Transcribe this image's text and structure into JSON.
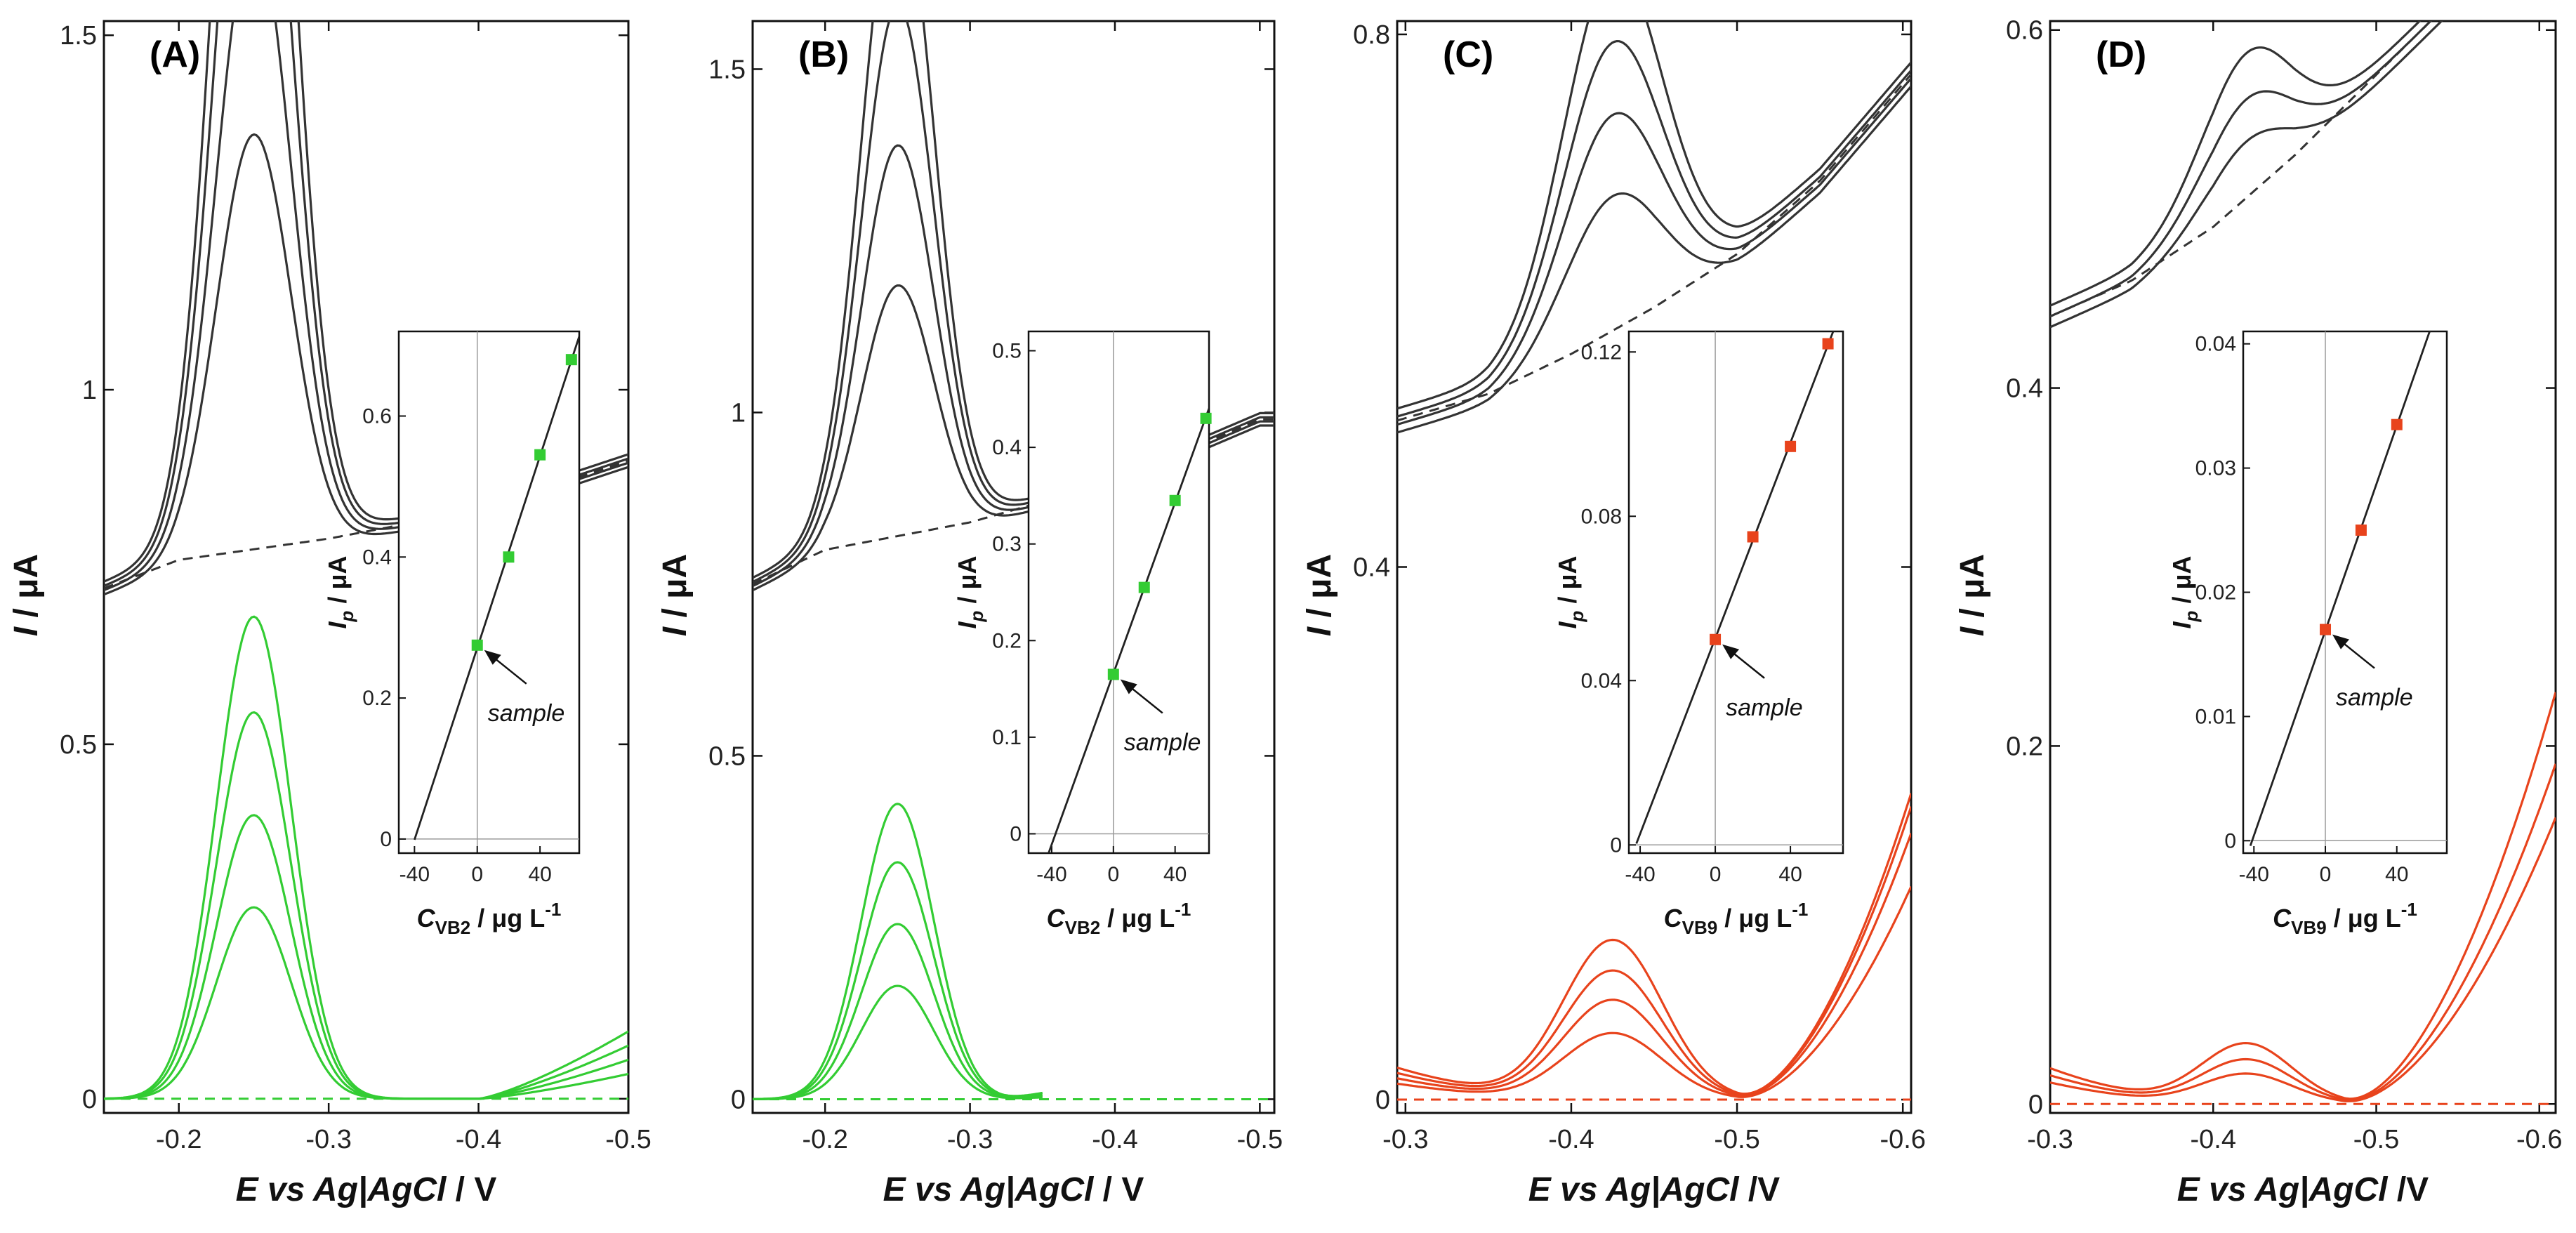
{
  "colors": {
    "black_curves": "#333333",
    "green": "#33cc33",
    "red": "#e8431c",
    "axis": "#111111",
    "zero_line": "#9a9a9a"
  },
  "y_title": "I / μA",
  "y_title_parts": {
    "italic": "I",
    "rest": " / μA"
  },
  "x_title_parts": [
    {
      "italic": "E vs Ag|AgCl",
      "rest": " / V"
    },
    {
      "italic": "E vs Ag|AgCl",
      "rest": " / V"
    },
    {
      "italic": "E vs Ag|AgCl",
      "rest": " /V"
    },
    {
      "italic": "E vs Ag|AgCl",
      "rest": " /V"
    }
  ],
  "chart_data": [
    {
      "type": "line",
      "panel_label": "(A)",
      "xlabel": "E vs Ag|AgCl / V",
      "ylabel": "I / μA",
      "xlim": [
        -0.15,
        -0.5
      ],
      "ylim": [
        -0.02,
        1.52
      ],
      "xticks": [
        -0.2,
        -0.3,
        -0.4,
        -0.5
      ],
      "xtick_labels": [
        "-0.2",
        "-0.3",
        "-0.4",
        "-0.5"
      ],
      "yticks": [
        0,
        0.5,
        1,
        1.5
      ],
      "ytick_labels": [
        "0",
        "0.5",
        "1",
        "1.5"
      ],
      "black_peak": {
        "center": -0.25,
        "width": 0.025,
        "heights": [
          0.27,
          0.4,
          0.545,
          0.675
        ],
        "baseline": [
          [
            -0.15,
            0.72
          ],
          [
            -0.2,
            0.76
          ],
          [
            -0.3,
            0.79
          ],
          [
            -0.4,
            0.83
          ],
          [
            -0.5,
            0.9
          ]
        ]
      },
      "green_peak": {
        "center": -0.25,
        "width": 0.025,
        "heights": [
          0.27,
          0.4,
          0.545,
          0.68
        ],
        "tail_end": [
          0.035,
          0.055,
          0.075,
          0.095
        ],
        "tail_start": -0.4
      },
      "inset": {
        "xlabel": "C_VB2 / μg L-1",
        "xlabel_parts": {
          "main": "C",
          "sub": "VB2",
          "rest": " / μg L",
          "sup": "-1"
        },
        "ylabel_parts": {
          "main": "I",
          "sub": "p",
          "rest": " / μA"
        },
        "xlim": [
          -50,
          65
        ],
        "ylim": [
          -0.02,
          0.72
        ],
        "xticks": [
          -40,
          0,
          40
        ],
        "xtick_labels": [
          "-40",
          "0",
          "40"
        ],
        "yticks": [
          0,
          0.2,
          0.4,
          0.6
        ],
        "ytick_labels": [
          "0",
          "0.2",
          "0.4",
          "0.6"
        ],
        "x": [
          0,
          20,
          40,
          60
        ],
        "y": [
          0.275,
          0.4,
          0.545,
          0.68
        ],
        "fit_x": [
          -40,
          65
        ],
        "annotation": "sample"
      }
    },
    {
      "type": "line",
      "panel_label": "(B)",
      "xlabel": "E vs Ag|AgCl / V",
      "ylabel": "I / μA",
      "xlim": [
        -0.15,
        -0.51
      ],
      "ylim": [
        -0.02,
        1.57
      ],
      "xticks": [
        -0.2,
        -0.3,
        -0.4,
        -0.5
      ],
      "xtick_labels": [
        "-0.2",
        "-0.3",
        "-0.4",
        "-0.5"
      ],
      "yticks": [
        0,
        0.5,
        1,
        1.5
      ],
      "ytick_labels": [
        "0",
        "0.5",
        "1",
        "1.5"
      ],
      "black_peak": {
        "center": -0.25,
        "width": 0.025,
        "heights": [
          0.17,
          0.26,
          0.35,
          0.43
        ],
        "baseline": [
          [
            -0.15,
            0.75
          ],
          [
            -0.2,
            0.8
          ],
          [
            -0.3,
            0.84
          ],
          [
            -0.4,
            0.9
          ],
          [
            -0.5,
            0.99
          ]
        ]
      },
      "green_peak": {
        "center": -0.25,
        "width": 0.025,
        "heights": [
          0.165,
          0.255,
          0.345,
          0.43
        ],
        "tail_end": [
          0.03,
          0.05,
          0.07,
          0.1
        ],
        "tail_start": -0.32,
        "end": -0.35
      },
      "inset": {
        "xlabel": "C_VB2 / μg L-1",
        "xlabel_parts": {
          "main": "C",
          "sub": "VB2",
          "rest": " / μg L",
          "sup": "-1"
        },
        "ylabel_parts": {
          "main": "I",
          "sub": "p",
          "rest": " / μA"
        },
        "xlim": [
          -55,
          62
        ],
        "ylim": [
          -0.02,
          0.52
        ],
        "xticks": [
          -40,
          0,
          40
        ],
        "xtick_labels": [
          "-40",
          "0",
          "40"
        ],
        "yticks": [
          0,
          0.1,
          0.2,
          0.3,
          0.4,
          0.5
        ],
        "ytick_labels": [
          "0",
          "0.1",
          "0.2",
          "0.3",
          "0.4",
          "0.5"
        ],
        "x": [
          0,
          20,
          40,
          60
        ],
        "y": [
          0.165,
          0.255,
          0.345,
          0.43
        ],
        "fit_x": [
          -42,
          62
        ],
        "annotation": "sample"
      }
    },
    {
      "type": "line",
      "panel_label": "(C)",
      "xlabel": "E vs Ag|AgCl /V",
      "ylabel": "I / μA",
      "xlim": [
        -0.295,
        -0.605
      ],
      "ylim": [
        -0.01,
        0.81
      ],
      "xticks": [
        -0.3,
        -0.4,
        -0.5,
        -0.6
      ],
      "xtick_labels": [
        "-0.3",
        "-0.4",
        "-0.5",
        "-0.6"
      ],
      "yticks": [
        0,
        0.4,
        0.8
      ],
      "ytick_labels": [
        "0",
        "0.4",
        "0.8"
      ],
      "black_peak": {
        "center": -0.425,
        "width": 0.03,
        "heights": [
          0.05,
          0.075,
          0.097,
          0.12
        ],
        "baseline": [
          [
            -0.295,
            0.51
          ],
          [
            -0.35,
            0.53
          ],
          [
            -0.4,
            0.56
          ],
          [
            -0.45,
            0.595
          ],
          [
            -0.5,
            0.635
          ],
          [
            -0.55,
            0.69
          ],
          [
            -0.605,
            0.77
          ]
        ]
      },
      "red_peak": {
        "center": -0.425,
        "width": 0.03,
        "heights": [
          0.05,
          0.075,
          0.097,
          0.12
        ],
        "tail_start": -0.5,
        "tail_end": [
          0.16,
          0.2,
          0.22,
          0.23
        ]
      },
      "inset": {
        "xlabel": "C_VB9 / μg L-1",
        "xlabel_parts": {
          "main": "C",
          "sub": "VB9",
          "rest": " / μg L",
          "sup": "-1"
        },
        "ylabel_parts": {
          "main": "I",
          "sub": "p",
          "rest": " / μA"
        },
        "xlim": [
          -46,
          68
        ],
        "ylim": [
          -0.002,
          0.125
        ],
        "xticks": [
          -40,
          0,
          40
        ],
        "xtick_labels": [
          "-40",
          "0",
          "40"
        ],
        "yticks": [
          0,
          0.04,
          0.08,
          0.12
        ],
        "ytick_labels": [
          "0",
          "0.04",
          "0.08",
          "0.12"
        ],
        "x": [
          0,
          20,
          40,
          60
        ],
        "y": [
          0.05,
          0.075,
          0.097,
          0.122
        ],
        "fit_x": [
          -42,
          65
        ],
        "annotation": "sample"
      }
    },
    {
      "type": "line",
      "panel_label": "(D)",
      "xlabel": "E vs Ag|AgCl /V",
      "ylabel": "I / μA",
      "xlim": [
        -0.3,
        -0.61
      ],
      "ylim": [
        -0.005,
        0.605
      ],
      "xticks": [
        -0.3,
        -0.4,
        -0.5,
        -0.6
      ],
      "xtick_labels": [
        "-0.3",
        "-0.4",
        "-0.5",
        "-0.6"
      ],
      "yticks": [
        0,
        0.2,
        0.4,
        0.6
      ],
      "ytick_labels": [
        "0",
        "0.2",
        "0.4",
        "0.6"
      ],
      "black_peak": {
        "center": -0.42,
        "width": 0.028,
        "heights": [
          0.017,
          0.025,
          0.034
        ],
        "baseline": [
          [
            -0.3,
            0.44
          ],
          [
            -0.35,
            0.46
          ],
          [
            -0.4,
            0.49
          ],
          [
            -0.45,
            0.53
          ],
          [
            -0.5,
            0.575
          ],
          [
            -0.55,
            0.62
          ],
          [
            -0.61,
            0.68
          ]
        ]
      },
      "red_peak": {
        "center": -0.42,
        "width": 0.028,
        "heights": [
          0.017,
          0.025,
          0.034
        ],
        "tail_start": -0.48,
        "tail_end": [
          0.16,
          0.19,
          0.23
        ]
      },
      "inset": {
        "xlabel": "C_VB9 / μg L-1",
        "xlabel_parts": {
          "main": "C",
          "sub": "VB9",
          "rest": " / μg L",
          "sup": "-1"
        },
        "ylabel_parts": {
          "main": "I",
          "sub": "p",
          "rest": " / μA"
        },
        "xlim": [
          -46,
          68
        ],
        "ylim": [
          -0.001,
          0.041
        ],
        "xticks": [
          -40,
          0,
          40
        ],
        "xtick_labels": [
          "-40",
          "0",
          "40"
        ],
        "yticks": [
          0,
          0.01,
          0.02,
          0.03,
          0.04
        ],
        "ytick_labels": [
          "0",
          "0.01",
          "0.02",
          "0.03",
          "0.04"
        ],
        "x": [
          0,
          20,
          40
        ],
        "y": [
          0.017,
          0.025,
          0.0335
        ],
        "fit_x": [
          -42,
          68
        ],
        "annotation": "sample"
      }
    }
  ]
}
